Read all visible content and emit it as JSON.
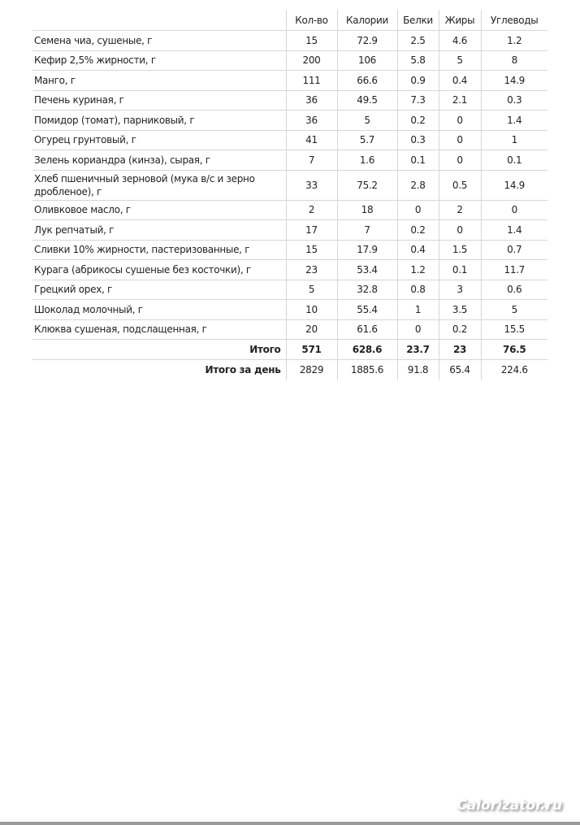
{
  "headers": [
    "",
    "Кол-во",
    "Калории",
    "Белки",
    "Жиры",
    "Углеводы"
  ],
  "rows": [
    {
      "name": "Семена чиа, сушеные, г",
      "qty": "15",
      "kcal": "72.9",
      "protein": "2.5",
      "fat": "4.6",
      "carbs": "1.2"
    },
    {
      "name": "Кефир 2,5% жирности, г",
      "qty": "200",
      "kcal": "106",
      "protein": "5.8",
      "fat": "5",
      "carbs": "8"
    },
    {
      "name": "Манго, г",
      "qty": "111",
      "kcal": "66.6",
      "protein": "0.9",
      "fat": "0.4",
      "carbs": "14.9"
    },
    {
      "name": "Печень куриная, г",
      "qty": "36",
      "kcal": "49.5",
      "protein": "7.3",
      "fat": "2.1",
      "carbs": "0.3"
    },
    {
      "name": "Помидор (томат), парниковый, г",
      "qty": "36",
      "kcal": "5",
      "protein": "0.2",
      "fat": "0",
      "carbs": "1.4"
    },
    {
      "name": "Огурец грунтовый, г",
      "qty": "41",
      "kcal": "5.7",
      "protein": "0.3",
      "fat": "0",
      "carbs": "1"
    },
    {
      "name": "Зелень кориандра (кинза), сырая, г",
      "qty": "7",
      "kcal": "1.6",
      "protein": "0.1",
      "fat": "0",
      "carbs": "0.1"
    },
    {
      "name": "Хлеб пшеничный зерновой (мука в/с и зерно дробленое), г",
      "qty": "33",
      "kcal": "75.2",
      "protein": "2.8",
      "fat": "0.5",
      "carbs": "14.9"
    },
    {
      "name": "Оливковое масло, г",
      "qty": "2",
      "kcal": "18",
      "protein": "0",
      "fat": "2",
      "carbs": "0"
    },
    {
      "name": "Лук репчатый, г",
      "qty": "17",
      "kcal": "7",
      "protein": "0.2",
      "fat": "0",
      "carbs": "1.4"
    },
    {
      "name": "Сливки 10% жирности, пастеризованные, г",
      "qty": "15",
      "kcal": "17.9",
      "protein": "0.4",
      "fat": "1.5",
      "carbs": "0.7"
    },
    {
      "name": "Курага (абрикосы сушеные без косточки), г",
      "qty": "23",
      "kcal": "53.4",
      "protein": "1.2",
      "fat": "0.1",
      "carbs": "11.7"
    },
    {
      "name": "Грецкий орех, г",
      "qty": "5",
      "kcal": "32.8",
      "protein": "0.8",
      "fat": "3",
      "carbs": "0.6"
    },
    {
      "name": "Шоколад молочный, г",
      "qty": "10",
      "kcal": "55.4",
      "protein": "1",
      "fat": "3.5",
      "carbs": "5"
    },
    {
      "name": "Клюква сушеная, подслащенная, г",
      "qty": "20",
      "kcal": "61.6",
      "protein": "0",
      "fat": "0.2",
      "carbs": "15.5"
    }
  ],
  "total": {
    "name": "Итого",
    "qty": "571",
    "kcal": "628.6",
    "protein": "23.7",
    "fat": "23",
    "carbs": "76.5"
  },
  "day_total": {
    "name": "Итого за день",
    "qty": "2829",
    "kcal": "1885.6",
    "protein": "91.8",
    "fat": "65.4",
    "carbs": "224.6"
  },
  "watermark": "Calorizator.ru"
}
